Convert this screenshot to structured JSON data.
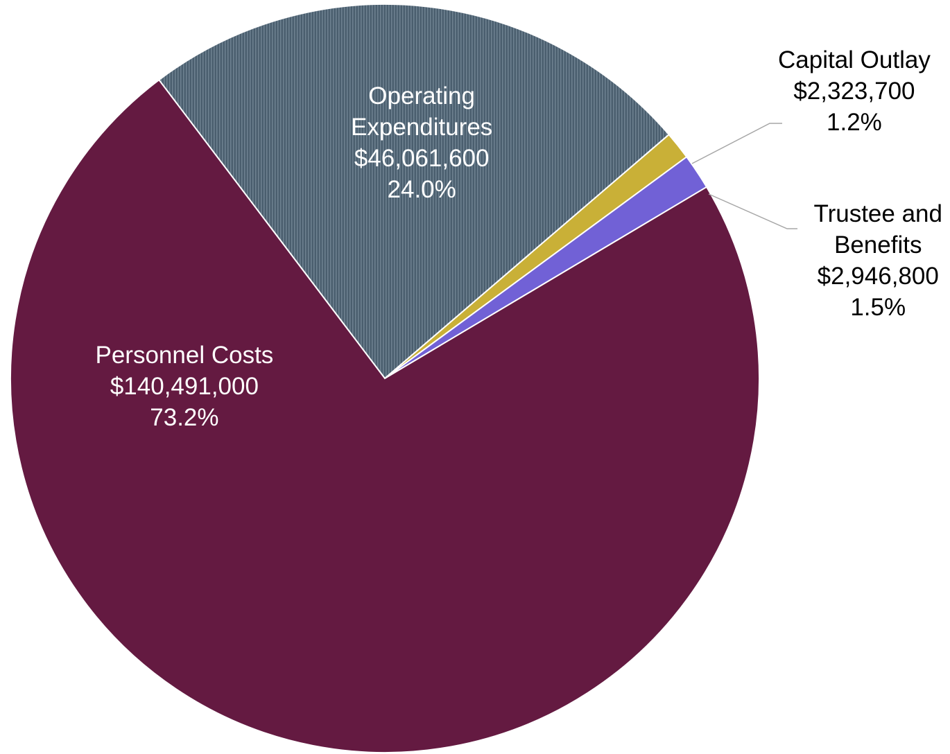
{
  "chart_data": {
    "type": "pie",
    "title": "",
    "start_angle_deg": -37.1,
    "slices": [
      {
        "name": "Operating Expenditures",
        "label_lines": [
          "Operating",
          "Expenditures"
        ],
        "value_label": "$46,061,600",
        "percent_label": "24.0%",
        "value": 46061600,
        "percent": 24.0,
        "color": "#4a5e6e",
        "pattern": "stripes"
      },
      {
        "name": "Capital Outlay",
        "label_lines": [
          "Capital Outlay"
        ],
        "value_label": "$2,323,700",
        "percent_label": "1.2%",
        "value": 2323700,
        "percent": 1.2,
        "color": "#c9b037",
        "pattern": "none"
      },
      {
        "name": "Trustee and Benefits",
        "label_lines": [
          "Trustee and",
          "Benefits"
        ],
        "value_label": "$2,946,800",
        "percent_label": "1.5%",
        "value": 2946800,
        "percent": 1.5,
        "color": "#7161d6",
        "pattern": "none"
      },
      {
        "name": "Personnel Costs",
        "label_lines": [
          "Personnel Costs"
        ],
        "value_label": "$140,491,000",
        "percent_label": "73.2%",
        "value": 140491000,
        "percent": 73.2,
        "color": "#641a41",
        "pattern": "none"
      }
    ]
  }
}
